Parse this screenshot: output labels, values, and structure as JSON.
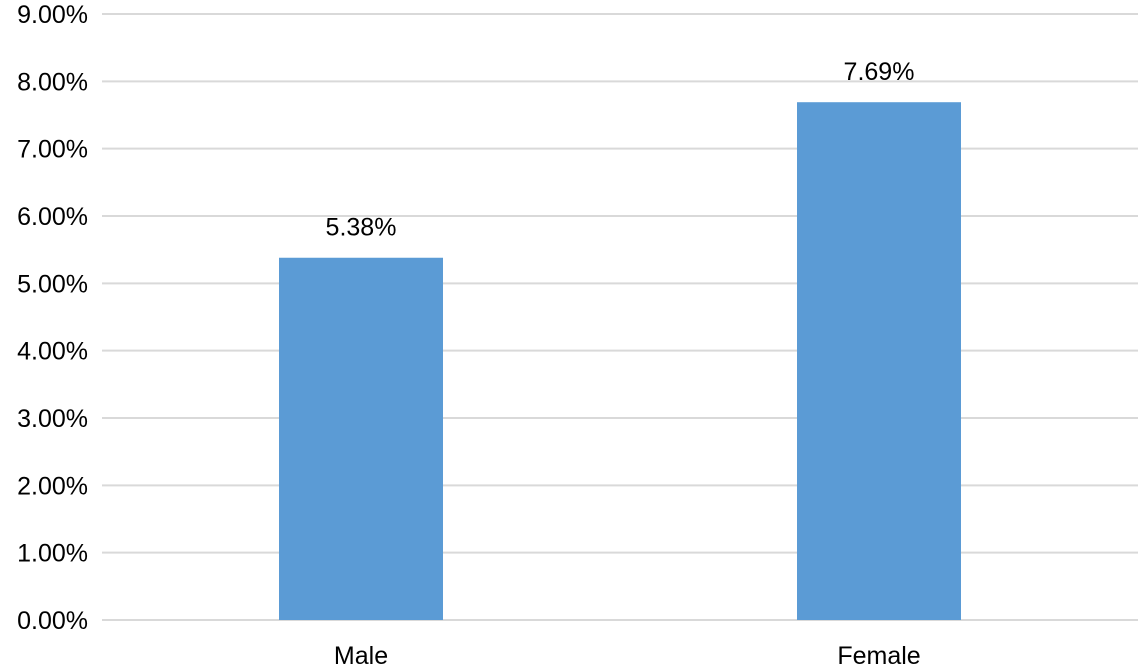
{
  "chart_data": {
    "type": "bar",
    "title": "",
    "xlabel": "",
    "ylabel": "",
    "categories": [
      "Male",
      "Female"
    ],
    "values": [
      5.38,
      7.69
    ],
    "data_labels": [
      "5.38%",
      "7.69%"
    ],
    "ylim": [
      0,
      9
    ],
    "y_ticks": [
      0,
      1,
      2,
      3,
      4,
      5,
      6,
      7,
      8,
      9
    ],
    "y_tick_labels": [
      "0.00%",
      "1.00%",
      "2.00%",
      "3.00%",
      "4.00%",
      "5.00%",
      "6.00%",
      "7.00%",
      "8.00%",
      "9.00%"
    ],
    "grid": true,
    "legend": "none",
    "bar_color": "#5b9bd5",
    "grid_color": "#d9d9d9"
  }
}
